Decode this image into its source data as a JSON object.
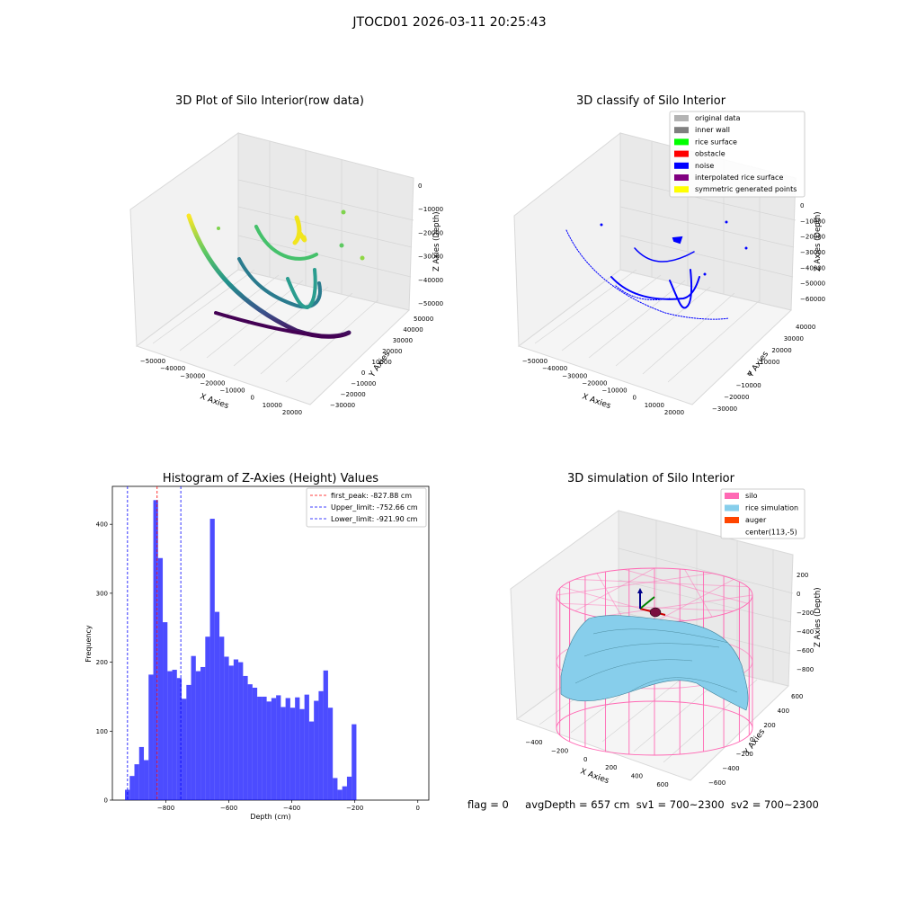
{
  "suptitle": "JTOCD01 2026-03-11 20:25:43",
  "footer": {
    "flag": "flag = 0",
    "avg_depth": "avgDepth = 657 cm",
    "sv1": "sv1 = 700~2300",
    "sv2": "sv2 = 700~2300"
  },
  "chart_data": [
    {
      "type": "scatter",
      "projection": "3d",
      "title": "3D Plot of Silo Interior(row data)",
      "xlabel": "X Axies",
      "ylabel": "Y Axies",
      "zlabel": "Z Axies (Depth)",
      "x_ticks": [
        "−50000",
        "−40000",
        "−30000",
        "−20000",
        "−10000",
        "0",
        "10000",
        "20000"
      ],
      "y_ticks": [
        "−30000",
        "−20000",
        "−10000",
        "0",
        "10000",
        "20000",
        "30000",
        "40000",
        "50000"
      ],
      "z_ticks": [
        "0",
        "−10000",
        "−20000",
        "−30000",
        "−40000",
        "−50000"
      ],
      "colormap": "viridis",
      "grid": true
    },
    {
      "type": "scatter",
      "projection": "3d",
      "title": "3D classify of Silo Interior",
      "xlabel": "X Axies",
      "ylabel": "Y Axies",
      "zlabel": "Z Axies (Depth)",
      "x_ticks": [
        "−50000",
        "−40000",
        "−30000",
        "−20000",
        "−10000",
        "0",
        "10000",
        "20000"
      ],
      "y_ticks": [
        "−30000",
        "−20000",
        "−10000",
        "0",
        "10000",
        "20000",
        "30000",
        "40000"
      ],
      "z_ticks": [
        "0",
        "−10000",
        "−20000",
        "−30000",
        "−40000",
        "−50000",
        "−60000"
      ],
      "legend": [
        {
          "label": "original data",
          "color": "#b3b3b3"
        },
        {
          "label": "inner wall",
          "color": "#808080"
        },
        {
          "label": "rice surface",
          "color": "#00ff00"
        },
        {
          "label": "obstacle",
          "color": "#ff0000"
        },
        {
          "label": "noise",
          "color": "#0000ff"
        },
        {
          "label": "interpolated rice surface",
          "color": "#800080"
        },
        {
          "label": "symmetric generated points",
          "color": "#ffff00"
        }
      ],
      "legend_position": "top-right",
      "grid": true
    },
    {
      "type": "bar",
      "title": "Histogram of Z-Axies (Height) Values",
      "xlabel": "Depth (cm)",
      "ylabel": "Frequency",
      "xlim": [
        -970,
        35
      ],
      "ylim": [
        0,
        455
      ],
      "x_ticks": [
        -800,
        -600,
        -400,
        -200,
        0
      ],
      "x_tick_labels": [
        "−800",
        "−600",
        "−400",
        "−200",
        "0"
      ],
      "y_ticks": [
        0,
        100,
        200,
        300,
        400
      ],
      "bin_start": -930,
      "bin_width": 15,
      "values": [
        15,
        35,
        52,
        77,
        58,
        182,
        435,
        351,
        258,
        187,
        189,
        177,
        147,
        167,
        209,
        187,
        193,
        237,
        408,
        273,
        237,
        208,
        195,
        204,
        200,
        180,
        168,
        163,
        150,
        150,
        143,
        148,
        152,
        135,
        148,
        134,
        149,
        132,
        153,
        114,
        144,
        158,
        188,
        134,
        32,
        15,
        20,
        34,
        110
      ],
      "bar_color": "#0000ff",
      "bar_alpha": 0.7,
      "vlines": [
        {
          "label": "first_peak: -827.88 cm",
          "x": -827.88,
          "color": "#ff0000"
        },
        {
          "label": "Upper_limit: -752.66 cm",
          "x": -752.66,
          "color": "#0000ff"
        },
        {
          "label": "Lower_limit: -921.90 cm",
          "x": -921.9,
          "color": "#0000ff"
        }
      ],
      "legend_position": "top-right"
    },
    {
      "type": "surface",
      "projection": "3d",
      "title": "3D simulation of Silo Interior",
      "xlabel": "X Axies",
      "ylabel": "Y Axies",
      "zlabel": "Z Axies (Depth)",
      "x_ticks": [
        "−400",
        "−200",
        "0",
        "200",
        "400",
        "600"
      ],
      "y_ticks": [
        "−600",
        "−400",
        "−200",
        "0",
        "200",
        "400",
        "600"
      ],
      "z_ticks": [
        "200",
        "0",
        "−200",
        "−400",
        "−600",
        "−800"
      ],
      "legend": [
        {
          "label": "silo",
          "color": "#ff69b4"
        },
        {
          "label": "rice simulation",
          "color": "#87ceeb"
        },
        {
          "label": "auger",
          "color": "#ff4500"
        },
        {
          "label": "center(113,-5)",
          "color": null
        }
      ],
      "legend_position": "top-right"
    }
  ]
}
